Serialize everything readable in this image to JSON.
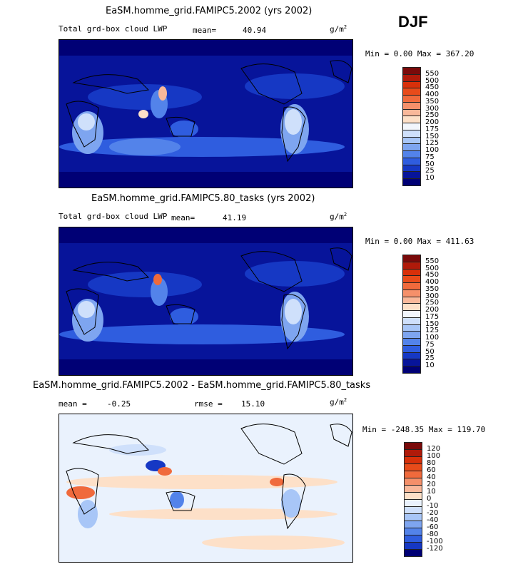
{
  "season": "DJF",
  "panels": [
    {
      "title": "EaSM.homme_grid.FAMIPC5.2002 (yrs 2002)",
      "variable": "Total grd-box cloud LWP",
      "mean_label": "mean=",
      "mean_value": "40.94",
      "units": "g/m",
      "units_exp": "2",
      "minmax": "Min =    0.00 Max = 367.20",
      "colorbar": {
        "labels": [
          "550",
          "500",
          "450",
          "400",
          "350",
          "300",
          "250",
          "200",
          "175",
          "150",
          "125",
          "100",
          "75",
          "50",
          "25",
          "10"
        ],
        "colors": [
          "#7a0a0a",
          "#b01a0a",
          "#d8300a",
          "#e84b1a",
          "#f06a3c",
          "#f5906a",
          "#f9b89a",
          "#fde0c8",
          "#f2f6fc",
          "#cfe0fb",
          "#a8c6f7",
          "#7ea5f0",
          "#5383ea",
          "#2f5ddf",
          "#1638c4",
          "#07149a",
          "#000075"
        ]
      }
    },
    {
      "title": "EaSM.homme_grid.FAMIPC5.80_tasks (yrs 2002)",
      "variable": "Total grd-box cloud LWP",
      "mean_label": "mean=",
      "mean_value": "41.19",
      "units": "g/m",
      "units_exp": "2",
      "minmax": "Min =    0.00 Max = 411.63",
      "colorbar": {
        "labels": [
          "550",
          "500",
          "450",
          "400",
          "350",
          "300",
          "250",
          "200",
          "175",
          "150",
          "125",
          "100",
          "75",
          "50",
          "25",
          "10"
        ],
        "colors": [
          "#7a0a0a",
          "#b01a0a",
          "#d8300a",
          "#e84b1a",
          "#f06a3c",
          "#f5906a",
          "#f9b89a",
          "#fde0c8",
          "#f2f6fc",
          "#cfe0fb",
          "#a8c6f7",
          "#7ea5f0",
          "#5383ea",
          "#2f5ddf",
          "#1638c4",
          "#07149a",
          "#000075"
        ]
      }
    },
    {
      "title": "EaSM.homme_grid.FAMIPC5.2002 - EaSM.homme_grid.FAMIPC5.80_tasks",
      "mean_label": "mean =",
      "mean_value": "-0.25",
      "rmse_label": "rmse =",
      "rmse_value": "15.10",
      "units": "g/m",
      "units_exp": "2",
      "minmax": "Min = -248.35 Max = 119.70",
      "colorbar": {
        "labels": [
          "120",
          "100",
          "80",
          "60",
          "40",
          "20",
          "10",
          "0",
          "-10",
          "-20",
          "-40",
          "-60",
          "-80",
          "-100",
          "-120"
        ],
        "colors": [
          "#7a0a0a",
          "#b01a0a",
          "#d8300a",
          "#e84b1a",
          "#f06a3c",
          "#f5906a",
          "#f9b89a",
          "#fde0c8",
          "#eaf2fd",
          "#cfe0fb",
          "#a8c6f7",
          "#7ea5f0",
          "#5383ea",
          "#2f5ddf",
          "#1638c4",
          "#000075"
        ]
      }
    }
  ],
  "chart_data": [
    {
      "type": "heatmap",
      "title": "EaSM.homme_grid.FAMIPC5.2002 (yrs 2002)",
      "variable": "Total grd-box cloud LWP",
      "units": "g/m2",
      "mean": 40.94,
      "min": 0.0,
      "max": 367.2,
      "levels": [
        10,
        25,
        50,
        75,
        100,
        125,
        150,
        175,
        200,
        250,
        300,
        350,
        400,
        450,
        500,
        550
      ]
    },
    {
      "type": "heatmap",
      "title": "EaSM.homme_grid.FAMIPC5.80_tasks (yrs 2002)",
      "variable": "Total grd-box cloud LWP",
      "units": "g/m2",
      "mean": 41.19,
      "min": 0.0,
      "max": 411.63,
      "levels": [
        10,
        25,
        50,
        75,
        100,
        125,
        150,
        175,
        200,
        250,
        300,
        350,
        400,
        450,
        500,
        550
      ]
    },
    {
      "type": "heatmap",
      "title": "EaSM.homme_grid.FAMIPC5.2002 - EaSM.homme_grid.FAMIPC5.80_tasks",
      "units": "g/m2",
      "mean": -0.25,
      "rmse": 15.1,
      "min": -248.35,
      "max": 119.7,
      "levels": [
        -120,
        -100,
        -80,
        -60,
        -40,
        -20,
        -10,
        0,
        10,
        20,
        40,
        60,
        80,
        100,
        120
      ]
    }
  ]
}
